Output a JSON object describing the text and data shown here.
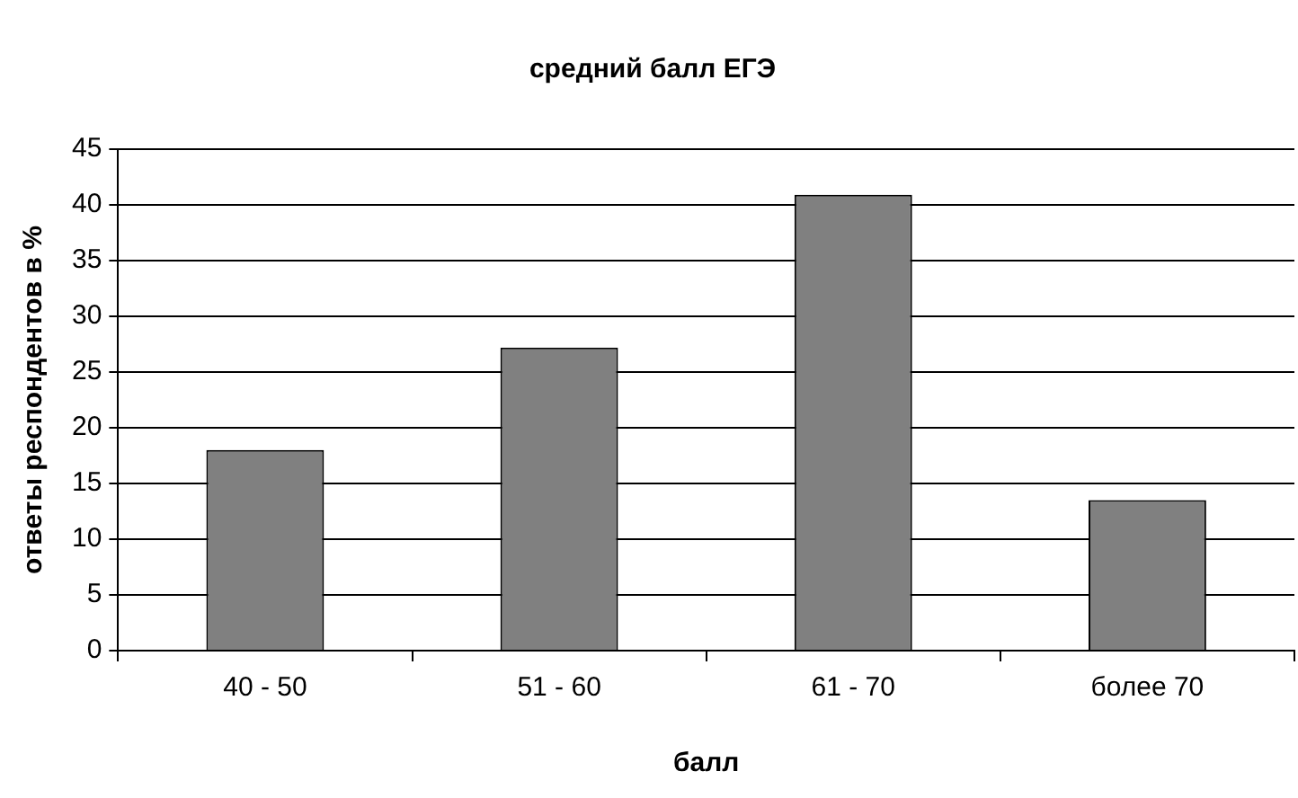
{
  "chart_data": {
    "type": "bar",
    "title": "средний балл ЕГЭ",
    "xlabel": "балл",
    "ylabel": "ответы респондентов в %",
    "categories": [
      "40 - 50",
      "51 - 60",
      "61 - 70",
      "более 70"
    ],
    "values": [
      18,
      27.2,
      40.9,
      13.5
    ],
    "color": "#808080",
    "ylim": [
      0,
      45
    ],
    "yticks": [
      0,
      5,
      10,
      15,
      20,
      25,
      30,
      35,
      40,
      45
    ],
    "grid": "y",
    "legend": false
  }
}
